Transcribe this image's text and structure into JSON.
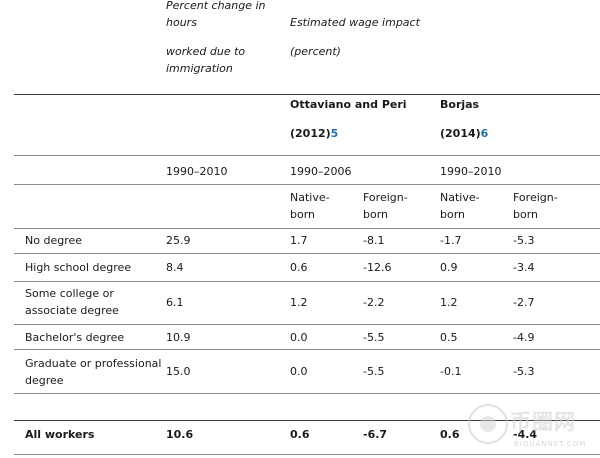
{
  "header": {
    "hours_col": [
      "Percent change in",
      "hours",
      "worked due to",
      "immigration"
    ],
    "wage_col": [
      "Estimated wage impact",
      "(percent)"
    ],
    "study1": {
      "name": "Ottaviano and Peri",
      "year": "(2012)",
      "ref": "5"
    },
    "study2": {
      "name": "Borjas",
      "year": "(2014)",
      "ref": "6"
    },
    "periods": [
      "1990–2010",
      "1990–2006",
      "1990–2010"
    ],
    "native_born": [
      "Native-",
      "born"
    ],
    "foreign_born": [
      "Foreign-",
      "born"
    ]
  },
  "rows": [
    {
      "label": [
        "No degree"
      ],
      "hours": "25.9",
      "op_native": "1.7",
      "op_foreign": "-8.1",
      "bj_native": "-1.7",
      "bj_foreign": "-5.3"
    },
    {
      "label": [
        "High school degree"
      ],
      "hours": "8.4",
      "op_native": "0.6",
      "op_foreign": "-12.6",
      "bj_native": "0.9",
      "bj_foreign": "-3.4"
    },
    {
      "label": [
        "Some college or",
        "associate degree"
      ],
      "hours": "6.1",
      "op_native": "1.2",
      "op_foreign": "-2.2",
      "bj_native": "1.2",
      "bj_foreign": "-2.7"
    },
    {
      "label": [
        "Bachelor's degree"
      ],
      "hours": "10.9",
      "op_native": "0.0",
      "op_foreign": "-5.5",
      "bj_native": "0.5",
      "bj_foreign": "-4.9"
    },
    {
      "label": [
        "Graduate or professional",
        "degree"
      ],
      "hours": "15.0",
      "op_native": "0.0",
      "op_foreign": "-5.5",
      "bj_native": "-0.1",
      "bj_foreign": "-5.3"
    }
  ],
  "total": {
    "label": "All workers",
    "hours": "10.6",
    "op_native": "0.6",
    "op_foreign": "-6.7",
    "bj_native": "0.6",
    "bj_foreign": "-4.4"
  },
  "watermark": {
    "text": "币圈网",
    "url": "BIQUANNET.COM"
  }
}
